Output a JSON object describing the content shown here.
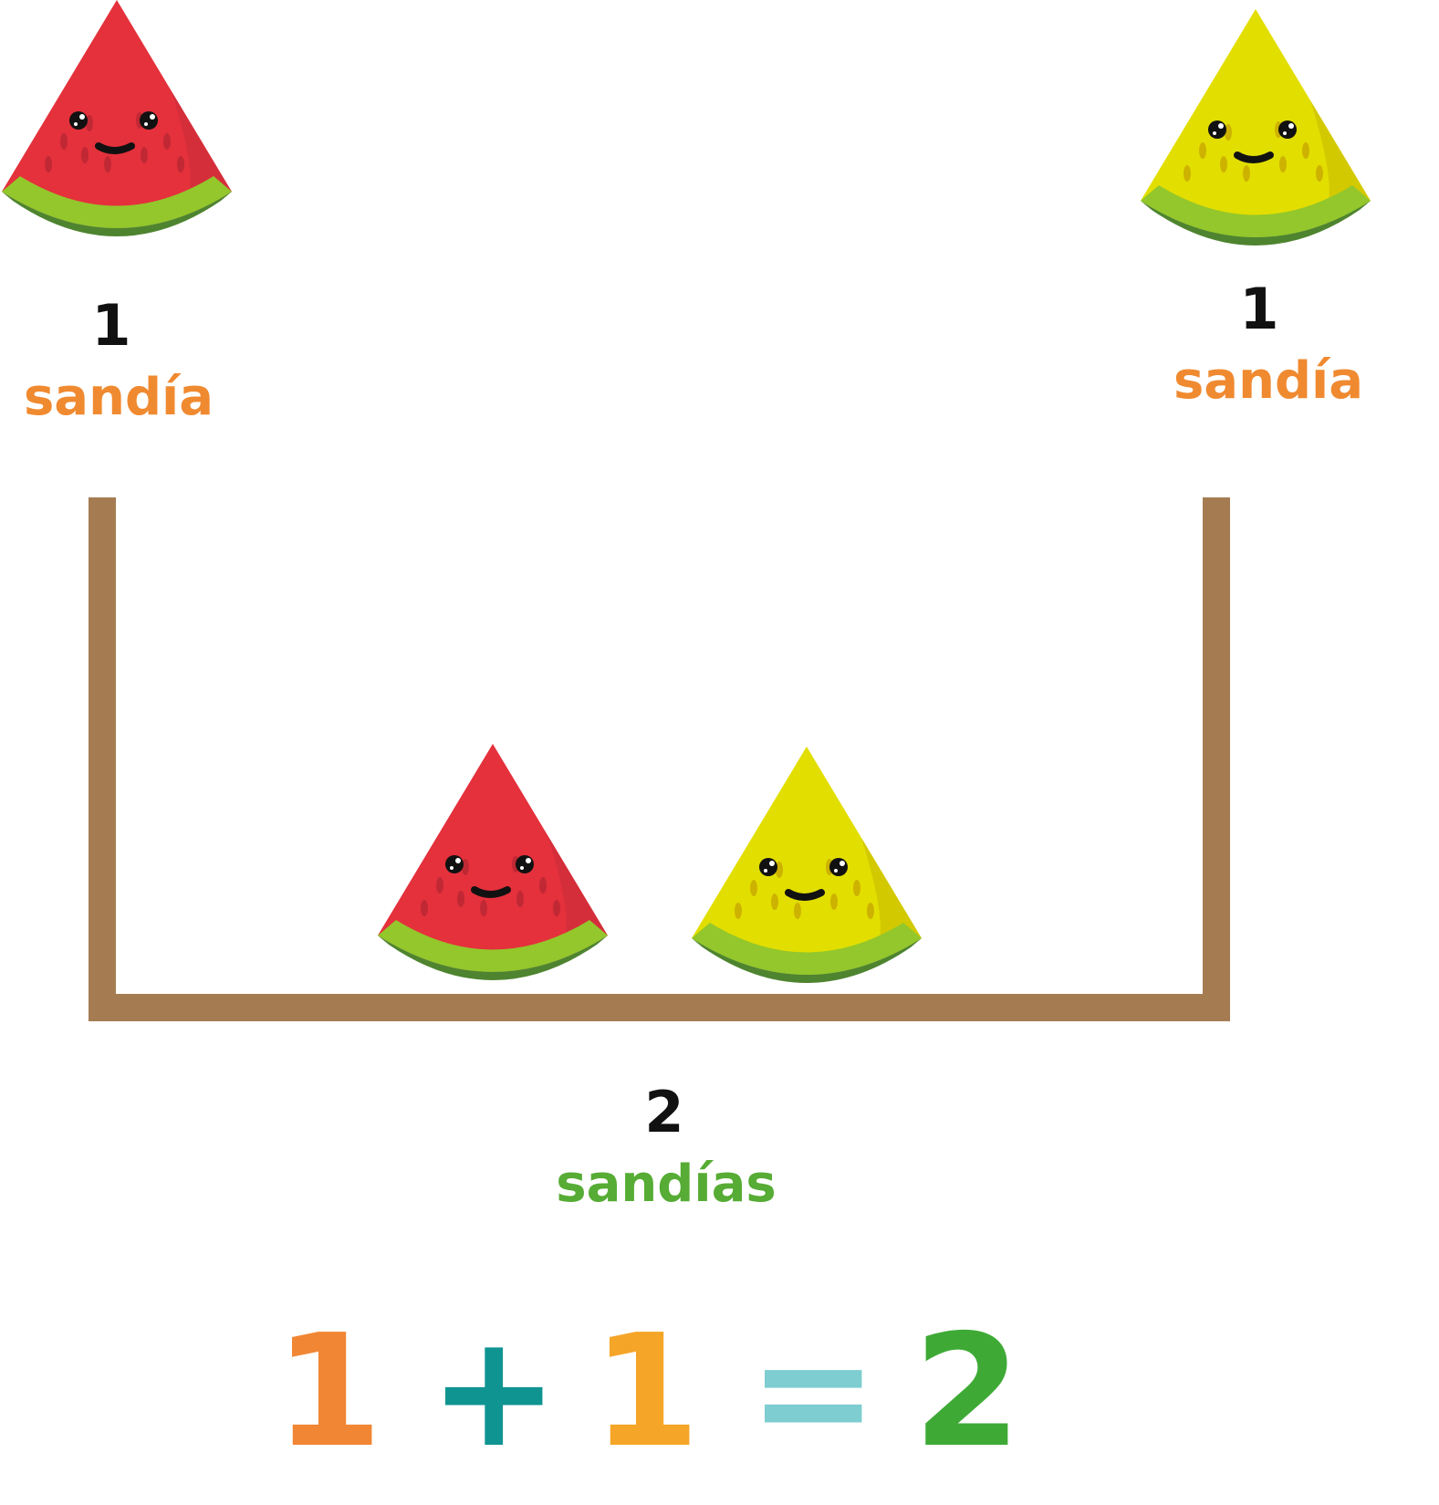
{
  "left_group": {
    "count": "1",
    "word": "sandía"
  },
  "right_group": {
    "count": "1",
    "word": "sandía"
  },
  "total_group": {
    "count": "2",
    "word": "sandías"
  },
  "equation": {
    "a": "1",
    "op": "+",
    "b": "1",
    "eq": "=",
    "result": "2"
  },
  "colors": {
    "word_single": "#f08a30",
    "word_total": "#56ac34",
    "eq_a": "#f18634",
    "eq_op": "#0f9492",
    "eq_b": "#f5a527",
    "eq_eq": "#7ecdd0",
    "eq_result": "#3eaa35",
    "bowl": "#a57c52",
    "red_flesh": "#e4313c",
    "yellow_flesh": "#e2de00",
    "rind_light": "#93c72b",
    "rind_dark": "#4e842f"
  },
  "icons": [
    "red-watermelon-slice-icon",
    "yellow-watermelon-slice-icon"
  ]
}
